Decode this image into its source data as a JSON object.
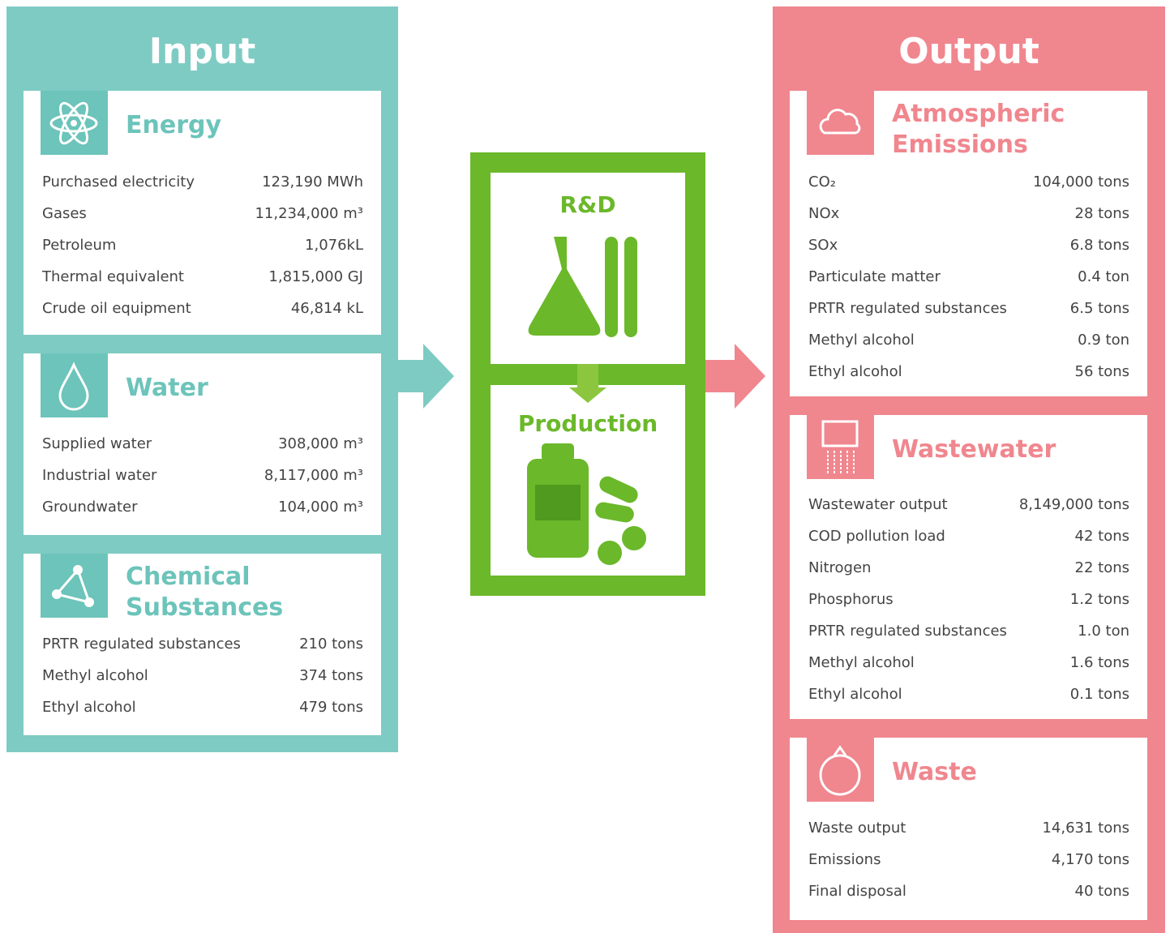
{
  "input": {
    "title": "Input",
    "sections": [
      {
        "title": "Energy",
        "rows": [
          [
            "Purchased electricity",
            "123,190 MWh"
          ],
          [
            "Gases",
            "11,234,000 m³"
          ],
          [
            "Petroleum",
            "1,076kL"
          ],
          [
            "Thermal equivalent",
            "1,815,000 GJ"
          ],
          [
            "Crude oil equipment",
            "46,814 kL"
          ]
        ]
      },
      {
        "title": "Water",
        "rows": [
          [
            "Supplied water",
            "308,000 m³"
          ],
          [
            "Industrial water",
            "8,117,000 m³"
          ],
          [
            "Groundwater",
            "104,000 m³"
          ]
        ]
      },
      {
        "title": "Chemical Substances",
        "rows": [
          [
            "PRTR regulated substances",
            "210 tons"
          ],
          [
            "Methyl alcohol",
            "374 tons"
          ],
          [
            "Ethyl alcohol",
            "479 tons"
          ]
        ]
      }
    ]
  },
  "process": {
    "stage1": "R&D",
    "stage2": "Production"
  },
  "output": {
    "title": "Output",
    "sections": [
      {
        "title": "Atmospheric Emissions",
        "rows": [
          [
            "CO₂",
            "104,000 tons"
          ],
          [
            "NOx",
            "28 tons"
          ],
          [
            "SOx",
            "6.8 tons"
          ],
          [
            "Particulate matter",
            "0.4 ton"
          ],
          [
            "PRTR regulated substances",
            "6.5 tons"
          ],
          [
            "Methyl alcohol",
            "0.9 ton"
          ],
          [
            "Ethyl alcohol",
            "56 tons"
          ]
        ]
      },
      {
        "title": "Wastewater",
        "rows": [
          [
            "Wastewater output",
            "8,149,000 tons"
          ],
          [
            "COD pollution load",
            "42 tons"
          ],
          [
            "Nitrogen",
            "22 tons"
          ],
          [
            "Phosphorus",
            "1.2 tons"
          ],
          [
            "PRTR regulated substances",
            "1.0 ton"
          ],
          [
            "Methyl alcohol",
            "1.6 tons"
          ],
          [
            "Ethyl alcohol",
            "0.1 tons"
          ]
        ]
      },
      {
        "title": "Waste",
        "rows": [
          [
            "Waste output",
            "14,631 tons"
          ],
          [
            "Emissions",
            "4,170 tons"
          ],
          [
            "Final disposal",
            "40 tons"
          ]
        ]
      }
    ]
  }
}
